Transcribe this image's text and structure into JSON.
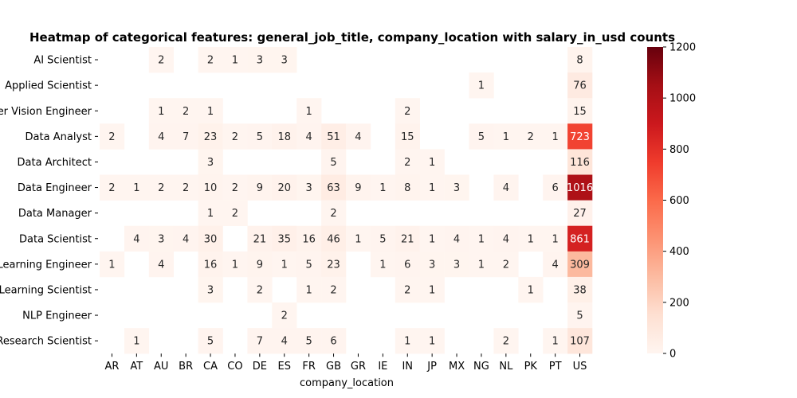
{
  "chart_data": {
    "type": "heatmap",
    "title": "Heatmap of categorical features: general_job_title, company_location with salary_in_usd counts",
    "xlabel": "company_location",
    "ylabel": "",
    "x_categories": [
      "AR",
      "AT",
      "AU",
      "BR",
      "CA",
      "CO",
      "DE",
      "ES",
      "FR",
      "GB",
      "GR",
      "IE",
      "IN",
      "JP",
      "MX",
      "NG",
      "NL",
      "PK",
      "PT",
      "US"
    ],
    "y_categories": [
      "AI Scientist",
      "Applied Scientist",
      "Computer Vision Engineer",
      "Data Analyst",
      "Data Architect",
      "Data Engineer",
      "Data Manager",
      "Data Scientist",
      "Machine Learning Engineer",
      "Machine Learning Scientist",
      "NLP Engineer",
      "Research Scientist"
    ],
    "values": [
      [
        null,
        null,
        2,
        null,
        2,
        1,
        3,
        3,
        null,
        null,
        null,
        null,
        null,
        null,
        null,
        null,
        null,
        null,
        null,
        8
      ],
      [
        null,
        null,
        null,
        null,
        null,
        null,
        null,
        null,
        null,
        null,
        null,
        null,
        null,
        null,
        null,
        1,
        null,
        null,
        null,
        76
      ],
      [
        null,
        null,
        1,
        2,
        1,
        null,
        null,
        null,
        1,
        null,
        null,
        null,
        2,
        null,
        null,
        null,
        null,
        null,
        null,
        15
      ],
      [
        2,
        null,
        4,
        7,
        23,
        2,
        5,
        18,
        4,
        51,
        4,
        null,
        15,
        null,
        null,
        5,
        1,
        2,
        1,
        723
      ],
      [
        null,
        null,
        null,
        null,
        3,
        null,
        null,
        null,
        null,
        5,
        null,
        null,
        2,
        1,
        null,
        null,
        null,
        null,
        null,
        116
      ],
      [
        2,
        1,
        2,
        2,
        10,
        2,
        9,
        20,
        3,
        63,
        9,
        1,
        8,
        1,
        3,
        null,
        4,
        null,
        6,
        1016
      ],
      [
        null,
        null,
        null,
        null,
        1,
        2,
        null,
        null,
        null,
        2,
        null,
        null,
        null,
        null,
        null,
        null,
        null,
        null,
        null,
        27
      ],
      [
        null,
        4,
        3,
        4,
        30,
        null,
        21,
        35,
        16,
        46,
        1,
        5,
        21,
        1,
        4,
        1,
        4,
        1,
        1,
        861
      ],
      [
        1,
        null,
        4,
        null,
        16,
        1,
        9,
        1,
        5,
        23,
        null,
        1,
        6,
        3,
        3,
        1,
        2,
        null,
        4,
        309
      ],
      [
        null,
        null,
        null,
        null,
        3,
        null,
        2,
        null,
        1,
        2,
        null,
        null,
        2,
        1,
        null,
        null,
        null,
        1,
        null,
        38
      ],
      [
        null,
        null,
        null,
        null,
        null,
        null,
        null,
        2,
        null,
        null,
        null,
        null,
        null,
        null,
        null,
        null,
        null,
        null,
        null,
        5
      ],
      [
        null,
        1,
        null,
        null,
        5,
        null,
        7,
        4,
        5,
        6,
        null,
        null,
        1,
        1,
        null,
        null,
        2,
        null,
        1,
        107
      ]
    ],
    "colorbar": {
      "min": 0,
      "max": 1200,
      "ticks": [
        0,
        200,
        400,
        600,
        800,
        1000,
        1200
      ]
    },
    "colormap": "Reds",
    "colors": [
      "#fff5f0",
      "#fee0d2",
      "#fcbba1",
      "#fc9272",
      "#fb6a4a",
      "#ef3b2c",
      "#cb181d",
      "#a50f15",
      "#67000d"
    ],
    "grid": false,
    "annotated": true
  }
}
